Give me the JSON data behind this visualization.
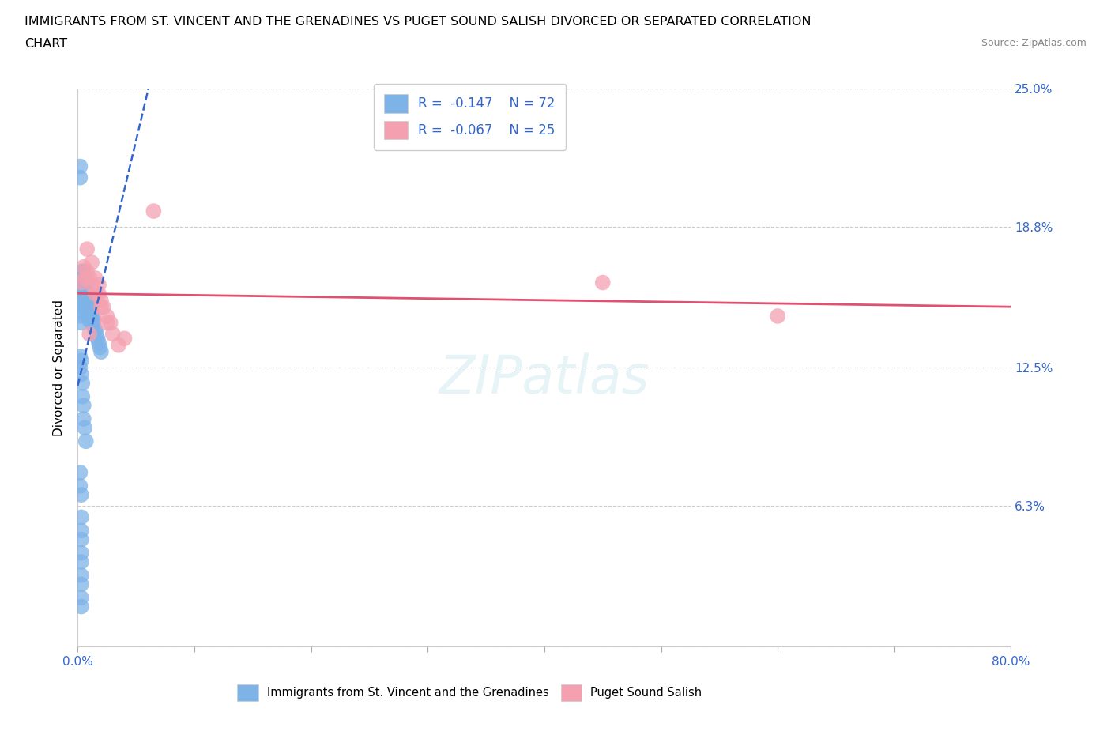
{
  "title_line1": "IMMIGRANTS FROM ST. VINCENT AND THE GRENADINES VS PUGET SOUND SALISH DIVORCED OR SEPARATED CORRELATION",
  "title_line2": "CHART",
  "source": "Source: ZipAtlas.com",
  "xlabel_legend": "Immigrants from St. Vincent and the Grenadines",
  "xlabel_legend2": "Puget Sound Salish",
  "ylabel": "Divorced or Separated",
  "xlim": [
    0.0,
    0.8
  ],
  "ylim": [
    0.0,
    0.25
  ],
  "ytick_vals": [
    0.0,
    0.063,
    0.125,
    0.188,
    0.25
  ],
  "ytick_labels_right": [
    "",
    "6.3%",
    "12.5%",
    "18.8%",
    "25.0%"
  ],
  "xtick_vals": [
    0.0,
    0.1,
    0.2,
    0.3,
    0.4,
    0.5,
    0.6,
    0.7,
    0.8
  ],
  "xtick_labels": [
    "0.0%",
    "",
    "",
    "",
    "",
    "",
    "",
    "",
    "80.0%"
  ],
  "blue_color": "#7EB3E8",
  "pink_color": "#F4A0B0",
  "blue_line_color": "#3366CC",
  "pink_line_color": "#E05070",
  "tick_color": "#3366CC",
  "legend_R1": "-0.147",
  "legend_N1": "72",
  "legend_R2": "-0.067",
  "legend_N2": "25",
  "blue_scatter_x": [
    0.002,
    0.002,
    0.003,
    0.003,
    0.003,
    0.003,
    0.003,
    0.003,
    0.003,
    0.003,
    0.003,
    0.004,
    0.004,
    0.004,
    0.004,
    0.004,
    0.005,
    0.005,
    0.005,
    0.005,
    0.005,
    0.006,
    0.006,
    0.006,
    0.006,
    0.007,
    0.007,
    0.007,
    0.008,
    0.008,
    0.008,
    0.009,
    0.009,
    0.009,
    0.01,
    0.01,
    0.01,
    0.011,
    0.011,
    0.012,
    0.012,
    0.013,
    0.013,
    0.014,
    0.015,
    0.016,
    0.017,
    0.018,
    0.019,
    0.02,
    0.002,
    0.002,
    0.003,
    0.003,
    0.004,
    0.004,
    0.005,
    0.005,
    0.006,
    0.007,
    0.002,
    0.002,
    0.003,
    0.003,
    0.003,
    0.003,
    0.003,
    0.003,
    0.003,
    0.003,
    0.003,
    0.003
  ],
  "blue_scatter_y": [
    0.21,
    0.215,
    0.165,
    0.162,
    0.16,
    0.158,
    0.155,
    0.153,
    0.15,
    0.148,
    0.145,
    0.168,
    0.165,
    0.162,
    0.158,
    0.155,
    0.168,
    0.165,
    0.162,
    0.158,
    0.155,
    0.162,
    0.158,
    0.155,
    0.152,
    0.16,
    0.156,
    0.152,
    0.158,
    0.154,
    0.15,
    0.156,
    0.152,
    0.148,
    0.154,
    0.15,
    0.146,
    0.152,
    0.148,
    0.15,
    0.146,
    0.148,
    0.144,
    0.146,
    0.142,
    0.14,
    0.138,
    0.136,
    0.134,
    0.132,
    0.13,
    0.125,
    0.128,
    0.122,
    0.118,
    0.112,
    0.108,
    0.102,
    0.098,
    0.092,
    0.078,
    0.072,
    0.068,
    0.058,
    0.052,
    0.048,
    0.042,
    0.038,
    0.032,
    0.028,
    0.022,
    0.018
  ],
  "pink_scatter_x": [
    0.003,
    0.005,
    0.006,
    0.008,
    0.01,
    0.012,
    0.015,
    0.018,
    0.02,
    0.022,
    0.025,
    0.028,
    0.03,
    0.008,
    0.012,
    0.45,
    0.6,
    0.065,
    0.04,
    0.035,
    0.025,
    0.02,
    0.015,
    0.018,
    0.01
  ],
  "pink_scatter_y": [
    0.163,
    0.17,
    0.165,
    0.168,
    0.165,
    0.162,
    0.158,
    0.162,
    0.155,
    0.152,
    0.148,
    0.145,
    0.14,
    0.178,
    0.172,
    0.163,
    0.148,
    0.195,
    0.138,
    0.135,
    0.145,
    0.152,
    0.165,
    0.158,
    0.14
  ],
  "watermark": "ZIPatlas"
}
